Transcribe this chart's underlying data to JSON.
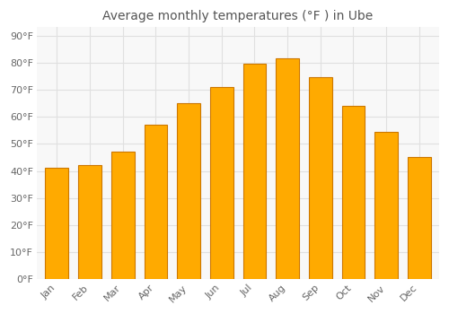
{
  "title": "Average monthly temperatures (°F ) in Ube",
  "months": [
    "Jan",
    "Feb",
    "Mar",
    "Apr",
    "May",
    "Jun",
    "Jul",
    "Aug",
    "Sep",
    "Oct",
    "Nov",
    "Dec"
  ],
  "values": [
    41,
    42,
    47,
    57,
    65,
    71,
    79.5,
    81.5,
    74.5,
    64,
    54.5,
    45
  ],
  "bar_face_color": "#FFAA00",
  "bar_edge_color": "#CC7700",
  "background_color": "#ffffff",
  "plot_bg_color": "#f8f8f8",
  "grid_color": "#e0e0e0",
  "yticks": [
    0,
    10,
    20,
    30,
    40,
    50,
    60,
    70,
    80,
    90
  ],
  "ylim": [
    0,
    93
  ],
  "title_fontsize": 10,
  "tick_fontsize": 8,
  "tick_color": "#666666",
  "title_color": "#555555"
}
